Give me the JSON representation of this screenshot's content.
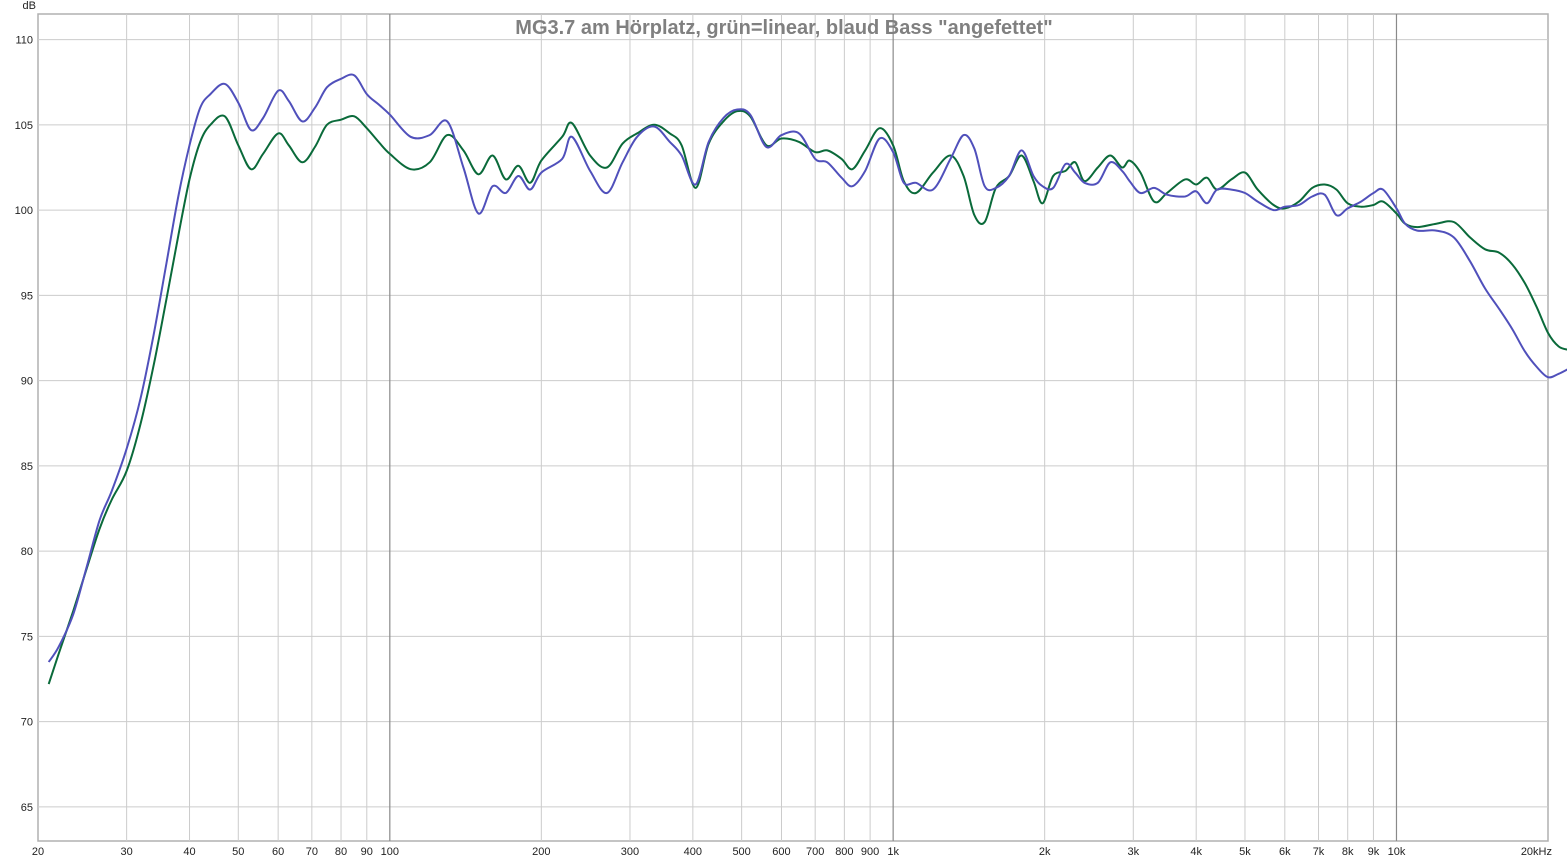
{
  "chart_data": {
    "type": "line",
    "title": "MG3.7 am Hörplatz, grün=linear, blaud Bass \"angefettet\"",
    "xlabel": "",
    "ylabel": "dB",
    "xscale": "log",
    "xlim": [
      20,
      20000
    ],
    "ylim": [
      63,
      111.5
    ],
    "grid": true,
    "x_ticks": [
      {
        "v": 20,
        "l": "20"
      },
      {
        "v": 30,
        "l": "30"
      },
      {
        "v": 40,
        "l": "40"
      },
      {
        "v": 50,
        "l": "50"
      },
      {
        "v": 60,
        "l": "60"
      },
      {
        "v": 70,
        "l": "70"
      },
      {
        "v": 80,
        "l": "80"
      },
      {
        "v": 90,
        "l": "90"
      },
      {
        "v": 100,
        "l": "100"
      },
      {
        "v": 200,
        "l": "200"
      },
      {
        "v": 300,
        "l": "300"
      },
      {
        "v": 400,
        "l": "400"
      },
      {
        "v": 500,
        "l": "500"
      },
      {
        "v": 600,
        "l": "600"
      },
      {
        "v": 700,
        "l": "700"
      },
      {
        "v": 800,
        "l": "800"
      },
      {
        "v": 900,
        "l": "900"
      },
      {
        "v": 1000,
        "l": "1k"
      },
      {
        "v": 2000,
        "l": "2k"
      },
      {
        "v": 3000,
        "l": "3k"
      },
      {
        "v": 4000,
        "l": "4k"
      },
      {
        "v": 5000,
        "l": "5k"
      },
      {
        "v": 6000,
        "l": "6k"
      },
      {
        "v": 7000,
        "l": "7k"
      },
      {
        "v": 8000,
        "l": "8k"
      },
      {
        "v": 9000,
        "l": "9k"
      },
      {
        "v": 10000,
        "l": "10k"
      },
      {
        "v": 20000,
        "l": "20kHz"
      }
    ],
    "y_ticks": [
      65,
      70,
      75,
      80,
      85,
      90,
      95,
      100,
      105,
      110
    ],
    "series": [
      {
        "color": "#0a6a3a",
        "points": [
          [
            21,
            72.2
          ],
          [
            22,
            74.0
          ],
          [
            23.5,
            76.5
          ],
          [
            25,
            79.0
          ],
          [
            26.5,
            81.3
          ],
          [
            28,
            83.0
          ],
          [
            30,
            84.7
          ],
          [
            32,
            87.5
          ],
          [
            34,
            91.0
          ],
          [
            36,
            94.8
          ],
          [
            38,
            98.5
          ],
          [
            40,
            101.8
          ],
          [
            42,
            104.0
          ],
          [
            44,
            105.0
          ],
          [
            47,
            105.5
          ],
          [
            50,
            103.8
          ],
          [
            53,
            102.4
          ],
          [
            56,
            103.3
          ],
          [
            60,
            104.5
          ],
          [
            63,
            103.8
          ],
          [
            67,
            102.8
          ],
          [
            71,
            103.7
          ],
          [
            75,
            105.0
          ],
          [
            80,
            105.3
          ],
          [
            85,
            105.5
          ],
          [
            90,
            104.8
          ],
          [
            95,
            104.0
          ],
          [
            100,
            103.3
          ],
          [
            110,
            102.4
          ],
          [
            120,
            102.8
          ],
          [
            130,
            104.4
          ],
          [
            140,
            103.5
          ],
          [
            150,
            102.1
          ],
          [
            160,
            103.2
          ],
          [
            170,
            101.8
          ],
          [
            180,
            102.6
          ],
          [
            190,
            101.6
          ],
          [
            200,
            102.9
          ],
          [
            220,
            104.3
          ],
          [
            230,
            105.1
          ],
          [
            250,
            103.2
          ],
          [
            270,
            102.5
          ],
          [
            290,
            103.9
          ],
          [
            310,
            104.5
          ],
          [
            335,
            105.0
          ],
          [
            360,
            104.5
          ],
          [
            380,
            103.8
          ],
          [
            405,
            101.3
          ],
          [
            430,
            103.9
          ],
          [
            460,
            105.2
          ],
          [
            490,
            105.8
          ],
          [
            520,
            105.5
          ],
          [
            560,
            103.8
          ],
          [
            600,
            104.2
          ],
          [
            650,
            104.0
          ],
          [
            700,
            103.4
          ],
          [
            740,
            103.5
          ],
          [
            790,
            103.0
          ],
          [
            830,
            102.4
          ],
          [
            880,
            103.5
          ],
          [
            940,
            104.8
          ],
          [
            1000,
            103.8
          ],
          [
            1050,
            101.7
          ],
          [
            1110,
            101.0
          ],
          [
            1200,
            102.2
          ],
          [
            1300,
            103.2
          ],
          [
            1380,
            102.0
          ],
          [
            1450,
            99.7
          ],
          [
            1520,
            99.3
          ],
          [
            1600,
            101.3
          ],
          [
            1700,
            102.0
          ],
          [
            1800,
            103.2
          ],
          [
            1900,
            101.7
          ],
          [
            1980,
            100.4
          ],
          [
            2080,
            102.0
          ],
          [
            2200,
            102.3
          ],
          [
            2300,
            102.8
          ],
          [
            2400,
            101.7
          ],
          [
            2550,
            102.5
          ],
          [
            2700,
            103.2
          ],
          [
            2850,
            102.5
          ],
          [
            2950,
            102.9
          ],
          [
            3100,
            102.2
          ],
          [
            3300,
            100.5
          ],
          [
            3500,
            101.0
          ],
          [
            3800,
            101.8
          ],
          [
            4000,
            101.5
          ],
          [
            4200,
            101.9
          ],
          [
            4400,
            101.2
          ],
          [
            4700,
            101.8
          ],
          [
            5000,
            102.2
          ],
          [
            5300,
            101.2
          ],
          [
            5700,
            100.3
          ],
          [
            6000,
            100.1
          ],
          [
            6400,
            100.5
          ],
          [
            6800,
            101.3
          ],
          [
            7200,
            101.5
          ],
          [
            7600,
            101.2
          ],
          [
            8000,
            100.4
          ],
          [
            8500,
            100.2
          ],
          [
            9000,
            100.3
          ],
          [
            9400,
            100.5
          ],
          [
            10000,
            99.8
          ],
          [
            10400,
            99.2
          ],
          [
            11000,
            99.0
          ],
          [
            12000,
            99.2
          ],
          [
            13000,
            99.3
          ],
          [
            14000,
            98.4
          ],
          [
            15000,
            97.7
          ],
          [
            16000,
            97.5
          ],
          [
            17000,
            96.8
          ],
          [
            18000,
            95.7
          ],
          [
            19000,
            94.3
          ],
          [
            20000,
            92.8
          ],
          [
            21000,
            92.0
          ],
          [
            22000,
            91.8
          ]
        ]
      },
      {
        "color": "#5050bb",
        "points": [
          [
            21,
            73.5
          ],
          [
            22,
            74.4
          ],
          [
            23.5,
            76.3
          ],
          [
            25,
            79.1
          ],
          [
            26.5,
            81.8
          ],
          [
            28,
            83.5
          ],
          [
            30,
            86.0
          ],
          [
            32,
            89.0
          ],
          [
            34,
            92.8
          ],
          [
            36,
            96.9
          ],
          [
            38,
            100.8
          ],
          [
            40,
            103.8
          ],
          [
            42,
            106.0
          ],
          [
            44,
            106.8
          ],
          [
            47,
            107.4
          ],
          [
            50,
            106.3
          ],
          [
            53,
            104.7
          ],
          [
            56,
            105.4
          ],
          [
            60,
            107.0
          ],
          [
            63,
            106.4
          ],
          [
            67,
            105.2
          ],
          [
            71,
            106.0
          ],
          [
            75,
            107.2
          ],
          [
            80,
            107.7
          ],
          [
            85,
            107.9
          ],
          [
            90,
            106.8
          ],
          [
            95,
            106.2
          ],
          [
            100,
            105.6
          ],
          [
            110,
            104.3
          ],
          [
            120,
            104.4
          ],
          [
            130,
            105.2
          ],
          [
            140,
            102.5
          ],
          [
            150,
            99.8
          ],
          [
            160,
            101.4
          ],
          [
            170,
            101.0
          ],
          [
            180,
            102.0
          ],
          [
            190,
            101.2
          ],
          [
            200,
            102.2
          ],
          [
            220,
            103.0
          ],
          [
            230,
            104.3
          ],
          [
            250,
            102.3
          ],
          [
            270,
            101.0
          ],
          [
            290,
            102.8
          ],
          [
            310,
            104.3
          ],
          [
            335,
            104.9
          ],
          [
            360,
            104.0
          ],
          [
            380,
            103.2
          ],
          [
            405,
            101.5
          ],
          [
            430,
            104.0
          ],
          [
            460,
            105.4
          ],
          [
            490,
            105.9
          ],
          [
            520,
            105.6
          ],
          [
            560,
            103.7
          ],
          [
            600,
            104.4
          ],
          [
            650,
            104.5
          ],
          [
            700,
            103.0
          ],
          [
            740,
            102.8
          ],
          [
            790,
            101.9
          ],
          [
            830,
            101.4
          ],
          [
            880,
            102.3
          ],
          [
            940,
            104.2
          ],
          [
            1000,
            103.4
          ],
          [
            1050,
            101.6
          ],
          [
            1110,
            101.6
          ],
          [
            1200,
            101.2
          ],
          [
            1300,
            103.0
          ],
          [
            1380,
            104.4
          ],
          [
            1450,
            103.6
          ],
          [
            1520,
            101.4
          ],
          [
            1600,
            101.3
          ],
          [
            1700,
            102.0
          ],
          [
            1800,
            103.5
          ],
          [
            1900,
            102.0
          ],
          [
            1980,
            101.4
          ],
          [
            2080,
            101.3
          ],
          [
            2200,
            102.7
          ],
          [
            2300,
            102.2
          ],
          [
            2400,
            101.6
          ],
          [
            2550,
            101.6
          ],
          [
            2700,
            102.8
          ],
          [
            2850,
            102.3
          ],
          [
            2950,
            101.7
          ],
          [
            3100,
            101.0
          ],
          [
            3300,
            101.3
          ],
          [
            3500,
            100.9
          ],
          [
            3800,
            100.8
          ],
          [
            4000,
            101.1
          ],
          [
            4200,
            100.4
          ],
          [
            4400,
            101.2
          ],
          [
            4700,
            101.2
          ],
          [
            5000,
            101.0
          ],
          [
            5300,
            100.5
          ],
          [
            5700,
            100.0
          ],
          [
            6000,
            100.2
          ],
          [
            6400,
            100.3
          ],
          [
            6800,
            100.8
          ],
          [
            7200,
            100.9
          ],
          [
            7600,
            99.7
          ],
          [
            8000,
            100.1
          ],
          [
            8500,
            100.5
          ],
          [
            9000,
            101.0
          ],
          [
            9400,
            101.2
          ],
          [
            10000,
            100.1
          ],
          [
            10400,
            99.2
          ],
          [
            11000,
            98.8
          ],
          [
            12000,
            98.8
          ],
          [
            13000,
            98.4
          ],
          [
            14000,
            97.0
          ],
          [
            15000,
            95.4
          ],
          [
            16000,
            94.2
          ],
          [
            17000,
            93.0
          ],
          [
            18000,
            91.7
          ],
          [
            19000,
            90.8
          ],
          [
            20000,
            90.2
          ],
          [
            21000,
            90.4
          ],
          [
            22000,
            90.7
          ]
        ]
      }
    ]
  }
}
